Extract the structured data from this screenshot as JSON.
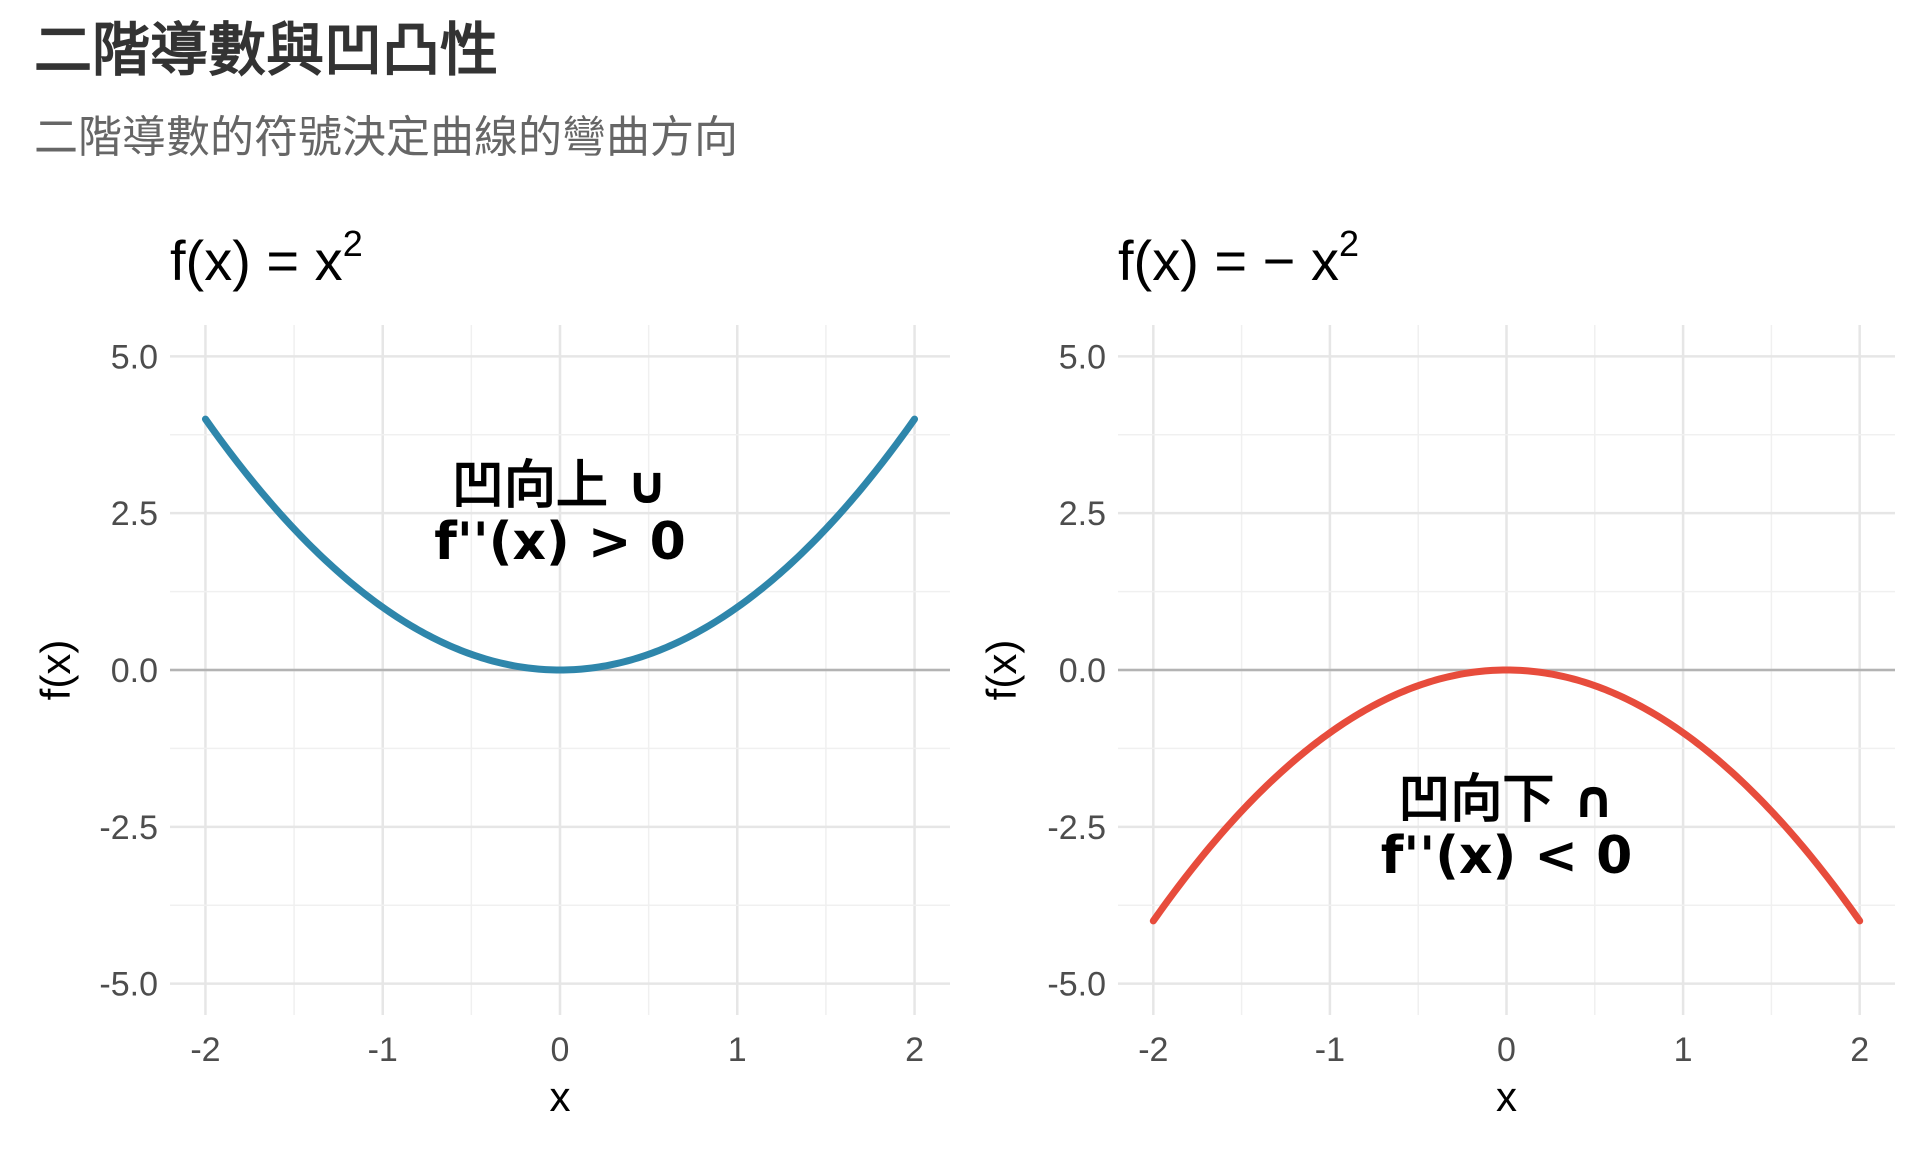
{
  "title": "二階導數與凹凸性",
  "subtitle": "二階導數的符號決定曲線的彎曲方向",
  "chart_data": [
    {
      "type": "line",
      "panel_title_parts": {
        "lhs": "f(x)",
        "eq": "=",
        "rhs": "x",
        "exp": "2"
      },
      "xlabel": "x",
      "ylabel": "f(x)",
      "xlim": [
        -2.2,
        2.2
      ],
      "ylim": [
        -5.5,
        5.5
      ],
      "x_ticks": [
        -2,
        -1,
        0,
        1,
        2
      ],
      "x_tick_labels": [
        "-2",
        "-1",
        "0",
        "1",
        "2"
      ],
      "y_ticks": [
        -5,
        -2.5,
        0,
        2.5,
        5
      ],
      "y_tick_labels": [
        "-5.0",
        "-2.5",
        "0.0",
        "2.5",
        "5.0"
      ],
      "grid": true,
      "zero_line": true,
      "color": "#2E86AB",
      "series": [
        {
          "x": [
            -2,
            -1.5,
            -1,
            -0.5,
            0,
            0.5,
            1,
            1.5,
            2
          ],
          "y": [
            4,
            2.25,
            1,
            0.25,
            0,
            0.25,
            1,
            2.25,
            4
          ]
        }
      ],
      "annotation": {
        "x": 0,
        "y": 2.5,
        "line1": "凹向上 ∪",
        "line2": "f''(x) > 0"
      }
    },
    {
      "type": "line",
      "panel_title_parts": {
        "lhs": "f(x)",
        "eq": "=",
        "rhs": "− x",
        "exp": "2"
      },
      "xlabel": "x",
      "ylabel": "f(x)",
      "xlim": [
        -2.2,
        2.2
      ],
      "ylim": [
        -5.5,
        5.5
      ],
      "x_ticks": [
        -2,
        -1,
        0,
        1,
        2
      ],
      "x_tick_labels": [
        "-2",
        "-1",
        "0",
        "1",
        "2"
      ],
      "y_ticks": [
        -5,
        -2.5,
        0,
        2.5,
        5
      ],
      "y_tick_labels": [
        "-5.0",
        "-2.5",
        "0.0",
        "2.5",
        "5.0"
      ],
      "grid": true,
      "zero_line": true,
      "color": "#E74C3C",
      "series": [
        {
          "x": [
            -2,
            -1.5,
            -1,
            -0.5,
            0,
            0.5,
            1,
            1.5,
            2
          ],
          "y": [
            -4,
            -2.25,
            -1,
            -0.25,
            0,
            -0.25,
            -1,
            -2.25,
            -4
          ]
        }
      ],
      "annotation": {
        "x": 0,
        "y": -2.5,
        "line1": "凹向下 ∩",
        "line2": "f''(x) < 0"
      }
    }
  ]
}
